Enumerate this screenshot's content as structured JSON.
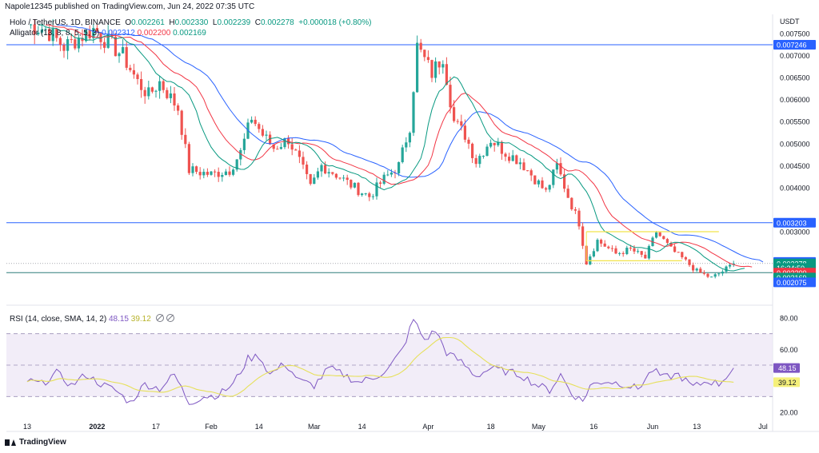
{
  "header": {
    "published": "Napole12345 published on TradingView.com, Jun 24, 2022 07:35 UTC",
    "symbol": "Holo / TetherUS, 1D, BINANCE",
    "o_label": "O",
    "o_value": "0.002261",
    "h_label": "H",
    "h_value": "0.002330",
    "l_label": "L",
    "l_value": "0.002239",
    "c_label": "C",
    "c_value": "0.002278",
    "change": "+0.000018 (+0.80%)"
  },
  "indicators": {
    "alligator_label": "Alligator (13, 8, 8, 5, 5, 3)",
    "alligator_jaw": "0.002312",
    "alligator_teeth": "0.002200",
    "alligator_lips": "0.002169",
    "rsi_label": "RSI (14, close, SMA, 14, 2)",
    "rsi_value": "48.15",
    "rsi_ma_value": "39.12"
  },
  "brand": "TradingView",
  "chart_data": {
    "type": "candlestick",
    "currency": "USDT",
    "price_axis": {
      "ticks": [
        "0.007500",
        "0.007000",
        "0.006500",
        "0.006000",
        "0.005500",
        "0.005000",
        "0.004500",
        "0.004000",
        "0.003000"
      ],
      "labels": [
        {
          "text": "0.007246",
          "value": 0.007246,
          "color": "#2962ff"
        },
        {
          "text": "0.003203",
          "value": 0.003203,
          "color": "#2962ff"
        },
        {
          "text": "0.002312",
          "value": 0.002312,
          "color": "#2962ff"
        },
        {
          "text": "0.002278",
          "value": 0.002278,
          "color": "#089981"
        },
        {
          "text": "16:24:50",
          "value": 0.002177,
          "color": "#089981"
        },
        {
          "text": "0.002200",
          "value": 0.00207,
          "color": "#f23645"
        },
        {
          "text": "0.002169",
          "value": 0.00196,
          "color": "#089981"
        },
        {
          "text": "0.002075",
          "value": 0.00185,
          "color": "#2962ff"
        }
      ]
    },
    "rsi_axis": {
      "ticks": [
        "80.00",
        "60.00",
        "20.00"
      ],
      "upper": 70,
      "mid": 50,
      "lower": 30
    },
    "time_axis": [
      {
        "label": "13",
        "day": 0
      },
      {
        "label": "2022",
        "day": 19
      },
      {
        "label": "17",
        "day": 35
      },
      {
        "label": "Feb",
        "day": 50
      },
      {
        "label": "14",
        "day": 63
      },
      {
        "label": "Mar",
        "day": 78
      },
      {
        "label": "14",
        "day": 91
      },
      {
        "label": "Apr",
        "day": 109
      },
      {
        "label": "18",
        "day": 126
      },
      {
        "label": "May",
        "day": 139
      },
      {
        "label": "16",
        "day": 154
      },
      {
        "label": "Jun",
        "day": 170
      },
      {
        "label": "13",
        "day": 182
      },
      {
        "label": "Jul",
        "day": 200
      }
    ],
    "horizontal_lines": [
      {
        "value": 0.007246,
        "color": "#2962ff"
      },
      {
        "value": 0.003203,
        "color": "#2962ff"
      },
      {
        "value": 0.00207,
        "color": "#2e7d7a"
      }
    ],
    "channel": [
      {
        "from_day": 152,
        "to_day": 188,
        "value": 0.003,
        "color": "#f2e44a"
      },
      {
        "from_day": 152,
        "to_day": 178,
        "value": 0.00234,
        "color": "#f2e44a"
      }
    ],
    "close_key": [
      {
        "day": 0,
        "close": 0.0077
      },
      {
        "day": 5,
        "close": 0.0076
      },
      {
        "day": 10,
        "close": 0.0072
      },
      {
        "day": 14,
        "close": 0.0074
      },
      {
        "day": 18,
        "close": 0.0076
      },
      {
        "day": 22,
        "close": 0.0073
      },
      {
        "day": 26,
        "close": 0.007
      },
      {
        "day": 30,
        "close": 0.0064
      },
      {
        "day": 33,
        "close": 0.0061
      },
      {
        "day": 36,
        "close": 0.0064
      },
      {
        "day": 41,
        "close": 0.0058
      },
      {
        "day": 44,
        "close": 0.0044
      },
      {
        "day": 50,
        "close": 0.0043
      },
      {
        "day": 55,
        "close": 0.0044
      },
      {
        "day": 58,
        "close": 0.0048
      },
      {
        "day": 61,
        "close": 0.0056
      },
      {
        "day": 64,
        "close": 0.0052
      },
      {
        "day": 67,
        "close": 0.0049
      },
      {
        "day": 71,
        "close": 0.0051
      },
      {
        "day": 74,
        "close": 0.0046
      },
      {
        "day": 77,
        "close": 0.004
      },
      {
        "day": 80,
        "close": 0.0045
      },
      {
        "day": 84,
        "close": 0.0043
      },
      {
        "day": 89,
        "close": 0.004
      },
      {
        "day": 93,
        "close": 0.0038
      },
      {
        "day": 97,
        "close": 0.0042
      },
      {
        "day": 101,
        "close": 0.0045
      },
      {
        "day": 104,
        "close": 0.0054
      },
      {
        "day": 106,
        "close": 0.0072
      },
      {
        "day": 110,
        "close": 0.0066
      },
      {
        "day": 113,
        "close": 0.007
      },
      {
        "day": 116,
        "close": 0.0055
      },
      {
        "day": 119,
        "close": 0.0052
      },
      {
        "day": 122,
        "close": 0.0046
      },
      {
        "day": 126,
        "close": 0.0051
      },
      {
        "day": 130,
        "close": 0.0048
      },
      {
        "day": 134,
        "close": 0.0046
      },
      {
        "day": 138,
        "close": 0.0042
      },
      {
        "day": 141,
        "close": 0.0039
      },
      {
        "day": 144,
        "close": 0.0045
      },
      {
        "day": 147,
        "close": 0.0038
      },
      {
        "day": 150,
        "close": 0.0032
      },
      {
        "day": 152,
        "close": 0.0023
      },
      {
        "day": 155,
        "close": 0.0028
      },
      {
        "day": 160,
        "close": 0.0025
      },
      {
        "day": 164,
        "close": 0.0026
      },
      {
        "day": 168,
        "close": 0.0024
      },
      {
        "day": 171,
        "close": 0.003
      },
      {
        "day": 175,
        "close": 0.0026
      },
      {
        "day": 178,
        "close": 0.0024
      },
      {
        "day": 182,
        "close": 0.0021
      },
      {
        "day": 186,
        "close": 0.00195
      },
      {
        "day": 189,
        "close": 0.0021
      },
      {
        "day": 192,
        "close": 0.002278
      }
    ],
    "rsi_key": [
      {
        "day": 0,
        "v": 40
      },
      {
        "day": 4,
        "v": 38
      },
      {
        "day": 8,
        "v": 45
      },
      {
        "day": 12,
        "v": 37
      },
      {
        "day": 16,
        "v": 44
      },
      {
        "day": 20,
        "v": 38
      },
      {
        "day": 24,
        "v": 34
      },
      {
        "day": 28,
        "v": 26
      },
      {
        "day": 32,
        "v": 38
      },
      {
        "day": 36,
        "v": 35
      },
      {
        "day": 40,
        "v": 44
      },
      {
        "day": 44,
        "v": 26
      },
      {
        "day": 48,
        "v": 30
      },
      {
        "day": 52,
        "v": 31
      },
      {
        "day": 56,
        "v": 38
      },
      {
        "day": 60,
        "v": 54
      },
      {
        "day": 63,
        "v": 56
      },
      {
        "day": 66,
        "v": 44
      },
      {
        "day": 70,
        "v": 51
      },
      {
        "day": 74,
        "v": 40
      },
      {
        "day": 78,
        "v": 37
      },
      {
        "day": 82,
        "v": 48
      },
      {
        "day": 86,
        "v": 44
      },
      {
        "day": 90,
        "v": 39
      },
      {
        "day": 94,
        "v": 42
      },
      {
        "day": 98,
        "v": 47
      },
      {
        "day": 102,
        "v": 60
      },
      {
        "day": 105,
        "v": 79
      },
      {
        "day": 108,
        "v": 66
      },
      {
        "day": 111,
        "v": 72
      },
      {
        "day": 114,
        "v": 58
      },
      {
        "day": 118,
        "v": 52
      },
      {
        "day": 122,
        "v": 43
      },
      {
        "day": 126,
        "v": 48
      },
      {
        "day": 130,
        "v": 46
      },
      {
        "day": 134,
        "v": 44
      },
      {
        "day": 138,
        "v": 38
      },
      {
        "day": 142,
        "v": 34
      },
      {
        "day": 145,
        "v": 44
      },
      {
        "day": 148,
        "v": 32
      },
      {
        "day": 151,
        "v": 27
      },
      {
        "day": 153,
        "v": 37
      },
      {
        "day": 157,
        "v": 40
      },
      {
        "day": 162,
        "v": 38
      },
      {
        "day": 166,
        "v": 35
      },
      {
        "day": 170,
        "v": 47
      },
      {
        "day": 173,
        "v": 42
      },
      {
        "day": 177,
        "v": 44
      },
      {
        "day": 181,
        "v": 36
      },
      {
        "day": 185,
        "v": 40
      },
      {
        "day": 188,
        "v": 38
      },
      {
        "day": 192,
        "v": 48
      }
    ],
    "alligator_last": {
      "jaw": 0.002312,
      "teeth": 0.0022,
      "lips": 0.002169
    },
    "colors": {
      "up": "#26a69a",
      "down": "#ef5350",
      "jaw": "#2962ff",
      "teeth": "#f23645",
      "lips": "#089981",
      "rsi": "#7e57c2",
      "rsi_ma": "#e6e05a",
      "rsi_band": "#ede7f6"
    }
  }
}
